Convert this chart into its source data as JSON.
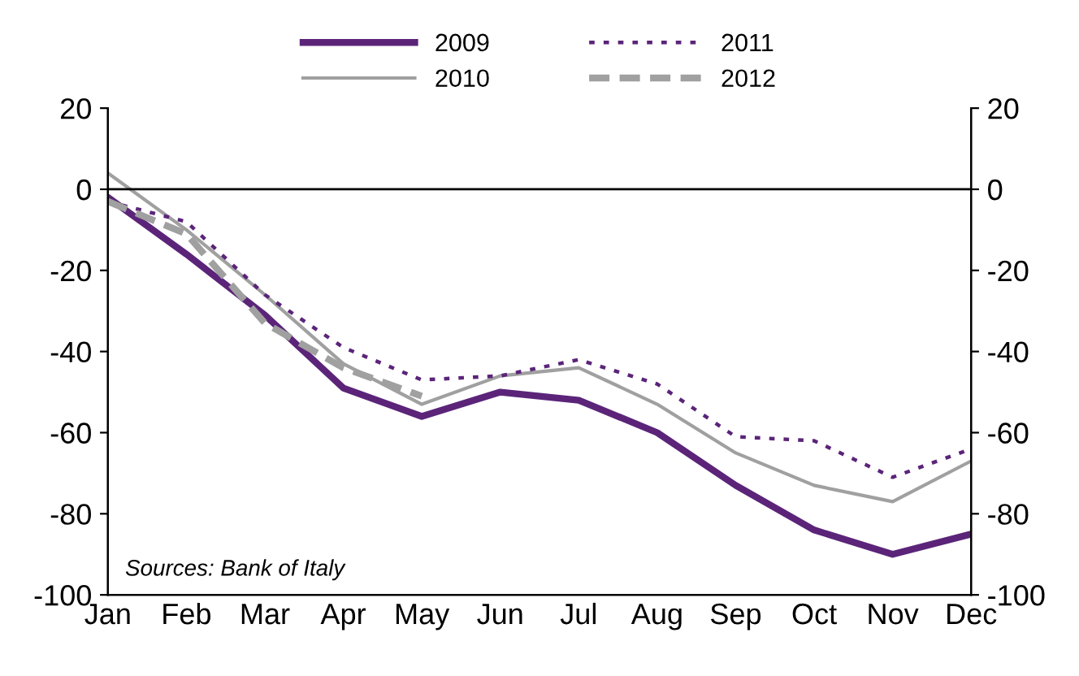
{
  "chart_data": {
    "type": "line",
    "categories": [
      "Jan",
      "Feb",
      "Mar",
      "Apr",
      "May",
      "Jun",
      "Jul",
      "Aug",
      "Sep",
      "Oct",
      "Nov",
      "Dec"
    ],
    "series": [
      {
        "name": "2009",
        "color": "#5b2479",
        "line_style": "solid",
        "values": [
          -2,
          -16,
          -31,
          -49,
          -56,
          -50,
          -52,
          -60,
          -73,
          -84,
          -90,
          -85
        ]
      },
      {
        "name": "2010",
        "color": "#a0a0a0",
        "line_style": "solid",
        "values": [
          4,
          -10,
          -26,
          -43,
          -53,
          -46,
          -44,
          -53,
          -65,
          -73,
          -77,
          -67
        ]
      },
      {
        "name": "2011",
        "color": "#5b2479",
        "line_style": "dotted",
        "values": [
          -3,
          -8,
          -26,
          -39,
          -47,
          -46,
          -42,
          -48,
          -61,
          -62,
          -71,
          -64
        ]
      },
      {
        "name": "2012",
        "color": "#a0a0a0",
        "line_style": "dashed",
        "values": [
          -3,
          -11,
          -33,
          -44,
          -51,
          null,
          null,
          null,
          null,
          null,
          null,
          null
        ]
      }
    ],
    "ylim": [
      -100,
      20
    ],
    "yticks": [
      -100,
      -80,
      -60,
      -40,
      -20,
      0,
      20
    ],
    "y2lim": [
      -100,
      20
    ],
    "y2ticks": [
      -100,
      -80,
      -60,
      -40,
      -20,
      0,
      20
    ],
    "ref_lines": [
      {
        "axis": "y",
        "value": 0,
        "color": "#000000",
        "line_style": "solid"
      }
    ],
    "annotations": [
      "Sources: Bank of Italy"
    ],
    "grid": false,
    "legend": "top",
    "marker": "none"
  }
}
